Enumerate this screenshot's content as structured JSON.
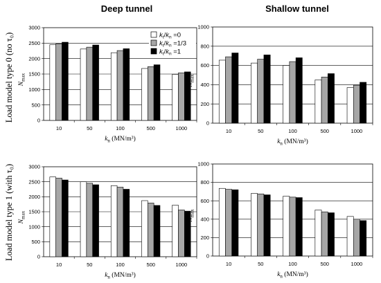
{
  "figure": {
    "columns": [
      "Deep tunnel",
      "Shallow tunnel"
    ],
    "rows": [
      "Load model type 0 (no τ₀)",
      "Load model type 1 (with τ₀)"
    ]
  },
  "legend": {
    "entries": [
      "kt/kn =0",
      "kt/kn =1/3",
      "kt/kn =1"
    ],
    "colors": [
      "#ffffff",
      "#a6a6a6",
      "#000000"
    ]
  },
  "chart_data": [
    {
      "type": "bar",
      "panel": "deep-type0",
      "categories": [
        "10",
        "50",
        "100",
        "500",
        "1000"
      ],
      "series": [
        {
          "name": "kt/kn =0",
          "values": [
            2450,
            2310,
            2190,
            1680,
            1490
          ]
        },
        {
          "name": "kt/kn =1/3",
          "values": [
            2480,
            2370,
            2260,
            1740,
            1540
          ]
        },
        {
          "name": "kt/kn =1",
          "values": [
            2530,
            2440,
            2320,
            1800,
            1570
          ]
        }
      ],
      "xlabel": "kn (MN/m³)",
      "ylabel": "Nmax",
      "ylim": [
        0,
        3000
      ],
      "yticks": [
        0,
        500,
        1000,
        1500,
        2000,
        2500,
        3000
      ],
      "legend": "top-right",
      "grid": "horizontal"
    },
    {
      "type": "bar",
      "panel": "shallow-type0",
      "categories": [
        "10",
        "50",
        "100",
        "500",
        "1000"
      ],
      "series": [
        {
          "name": "kt/kn =0",
          "values": [
            655,
            625,
            600,
            450,
            370
          ]
        },
        {
          "name": "kt/kn =1/3",
          "values": [
            690,
            665,
            640,
            480,
            395
          ]
        },
        {
          "name": "kt/kn =1",
          "values": [
            730,
            710,
            680,
            515,
            425
          ]
        }
      ],
      "xlabel": "kn (MN/m³)",
      "ylabel": "Nmax",
      "ylim": [
        0,
        1000
      ],
      "yticks": [
        0,
        200,
        400,
        600,
        800,
        1000
      ],
      "grid": "horizontal"
    },
    {
      "type": "bar",
      "panel": "deep-type1",
      "categories": [
        "10",
        "50",
        "100",
        "500",
        "1000"
      ],
      "series": [
        {
          "name": "kt/kn =0",
          "values": [
            2660,
            2500,
            2370,
            1870,
            1720
          ]
        },
        {
          "name": "kt/kn =1/3",
          "values": [
            2620,
            2450,
            2320,
            1790,
            1560
          ]
        },
        {
          "name": "kt/kn =1",
          "values": [
            2560,
            2400,
            2250,
            1710,
            1520
          ]
        }
      ],
      "xlabel": "kn (MN/m³)",
      "ylabel": "Nmax",
      "ylim": [
        0,
        3000
      ],
      "yticks": [
        0,
        500,
        1000,
        1500,
        2000,
        2500,
        3000
      ],
      "grid": "horizontal"
    },
    {
      "type": "bar",
      "panel": "shallow-type1",
      "categories": [
        "10",
        "50",
        "100",
        "500",
        "1000"
      ],
      "series": [
        {
          "name": "kt/kn =0",
          "values": [
            735,
            680,
            650,
            500,
            430
          ]
        },
        {
          "name": "kt/kn =1/3",
          "values": [
            725,
            675,
            640,
            480,
            400
          ]
        },
        {
          "name": "kt/kn =1",
          "values": [
            720,
            665,
            635,
            470,
            385
          ]
        }
      ],
      "xlabel": "kn (MN/m³)",
      "ylabel": "Nmax",
      "ylim": [
        0,
        1000
      ],
      "yticks": [
        0,
        200,
        400,
        600,
        800,
        1000
      ],
      "grid": "horizontal"
    }
  ]
}
